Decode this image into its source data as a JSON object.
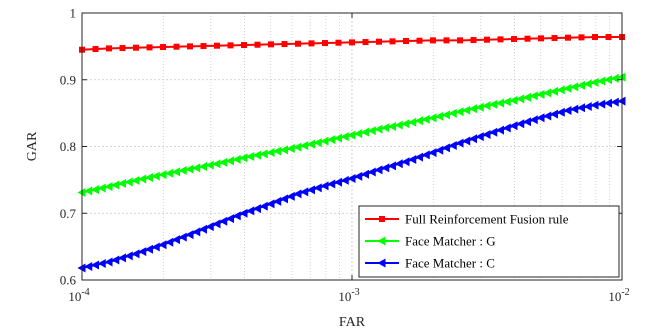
{
  "chart_data": {
    "type": "line",
    "title": "",
    "xlabel": "FAR",
    "ylabel": "GAR",
    "x_scale": "log",
    "xlim": [
      0.0001,
      0.01
    ],
    "ylim": [
      0.6,
      1.0
    ],
    "x_ticks": [
      {
        "value": 0.0001,
        "base": "10",
        "exp": "-4"
      },
      {
        "value": 0.001,
        "base": "10",
        "exp": "-3"
      },
      {
        "value": 0.01,
        "base": "10",
        "exp": "-2"
      }
    ],
    "y_ticks": [
      {
        "value": 0.6,
        "label": "0.6"
      },
      {
        "value": 0.7,
        "label": "0.7"
      },
      {
        "value": 0.8,
        "label": "0.8"
      },
      {
        "value": 0.9,
        "label": "0.9"
      },
      {
        "value": 1.0,
        "label": "1"
      }
    ],
    "grid": true,
    "legend_position": "bottom-right",
    "series": [
      {
        "name": "Full Reinforcement Fusion rule",
        "color": "#ff0000",
        "marker": "square",
        "x": [
          0.0001,
          0.000126,
          0.000158,
          0.0002,
          0.000251,
          0.000316,
          0.000398,
          0.000501,
          0.000631,
          0.000794,
          0.001,
          0.00126,
          0.00158,
          0.002,
          0.00251,
          0.00316,
          0.00398,
          0.00501,
          0.00631,
          0.00794,
          0.01
        ],
        "y": [
          0.945,
          0.947,
          0.948,
          0.949,
          0.95,
          0.951,
          0.952,
          0.953,
          0.954,
          0.955,
          0.956,
          0.957,
          0.958,
          0.959,
          0.959,
          0.96,
          0.961,
          0.962,
          0.963,
          0.964,
          0.964
        ]
      },
      {
        "name": "Face Matcher : G",
        "color": "#00ff00",
        "marker": "triangle-left",
        "x": [
          0.0001,
          0.000126,
          0.000158,
          0.0002,
          0.000251,
          0.000316,
          0.000398,
          0.000501,
          0.000631,
          0.000794,
          0.001,
          0.00126,
          0.00158,
          0.002,
          0.00251,
          0.00316,
          0.00398,
          0.00501,
          0.00631,
          0.00794,
          0.01
        ],
        "y": [
          0.731,
          0.74,
          0.749,
          0.758,
          0.766,
          0.774,
          0.783,
          0.791,
          0.799,
          0.808,
          0.817,
          0.826,
          0.834,
          0.843,
          0.852,
          0.861,
          0.869,
          0.878,
          0.887,
          0.896,
          0.904
        ]
      },
      {
        "name": "Face Matcher : C",
        "color": "#0000ff",
        "marker": "triangle-left",
        "x": [
          0.0001,
          0.000126,
          0.000158,
          0.0002,
          0.000251,
          0.000316,
          0.000398,
          0.000501,
          0.000631,
          0.000794,
          0.001,
          0.00126,
          0.00158,
          0.002,
          0.00251,
          0.00316,
          0.00398,
          0.00501,
          0.00631,
          0.00794,
          0.01
        ],
        "y": [
          0.618,
          0.627,
          0.639,
          0.653,
          0.668,
          0.684,
          0.7,
          0.714,
          0.729,
          0.741,
          0.752,
          0.765,
          0.777,
          0.791,
          0.805,
          0.818,
          0.831,
          0.843,
          0.854,
          0.862,
          0.868
        ]
      }
    ]
  }
}
